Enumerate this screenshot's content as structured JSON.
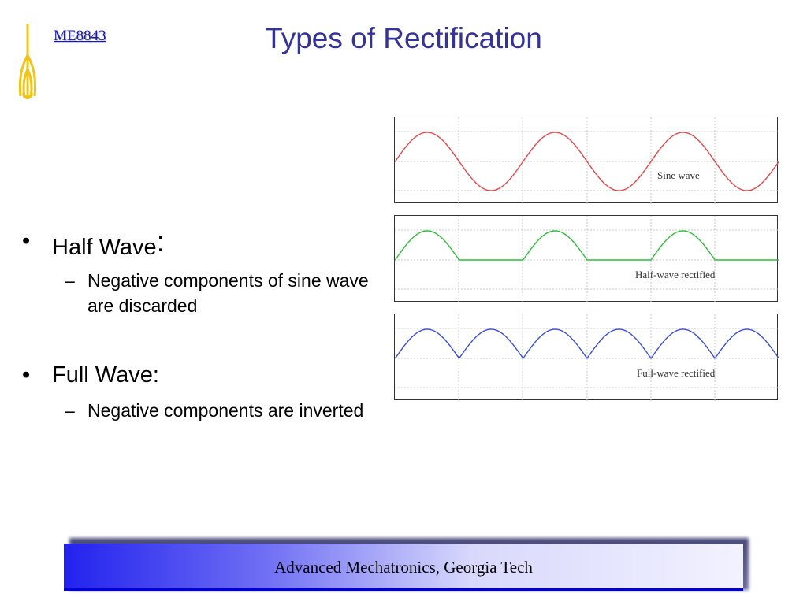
{
  "header": {
    "course_code": "ME8843",
    "title": "Types of Rectification"
  },
  "bullets": [
    {
      "label": "Half Wave",
      "colon": ":",
      "sub": "Negative components of sine wave are discarded"
    },
    {
      "label": "Full Wave:",
      "sub": "Negative components are inverted"
    }
  ],
  "panels": [
    {
      "label": "Sine wave",
      "kind": "sine",
      "color": "#e8474a"
    },
    {
      "label": "Half-wave rectified",
      "kind": "half-wave",
      "color": "#2dbe3a"
    },
    {
      "label": "Full-wave rectified",
      "kind": "full-wave",
      "color": "#3a4fe0"
    }
  ],
  "footer": {
    "text": "Advanced Mechatronics, Georgia Tech"
  },
  "colors": {
    "title": "#33339a",
    "course_code": "#1a1aa8",
    "logo": "#f0c418",
    "footer_accent": "#0000dd"
  }
}
